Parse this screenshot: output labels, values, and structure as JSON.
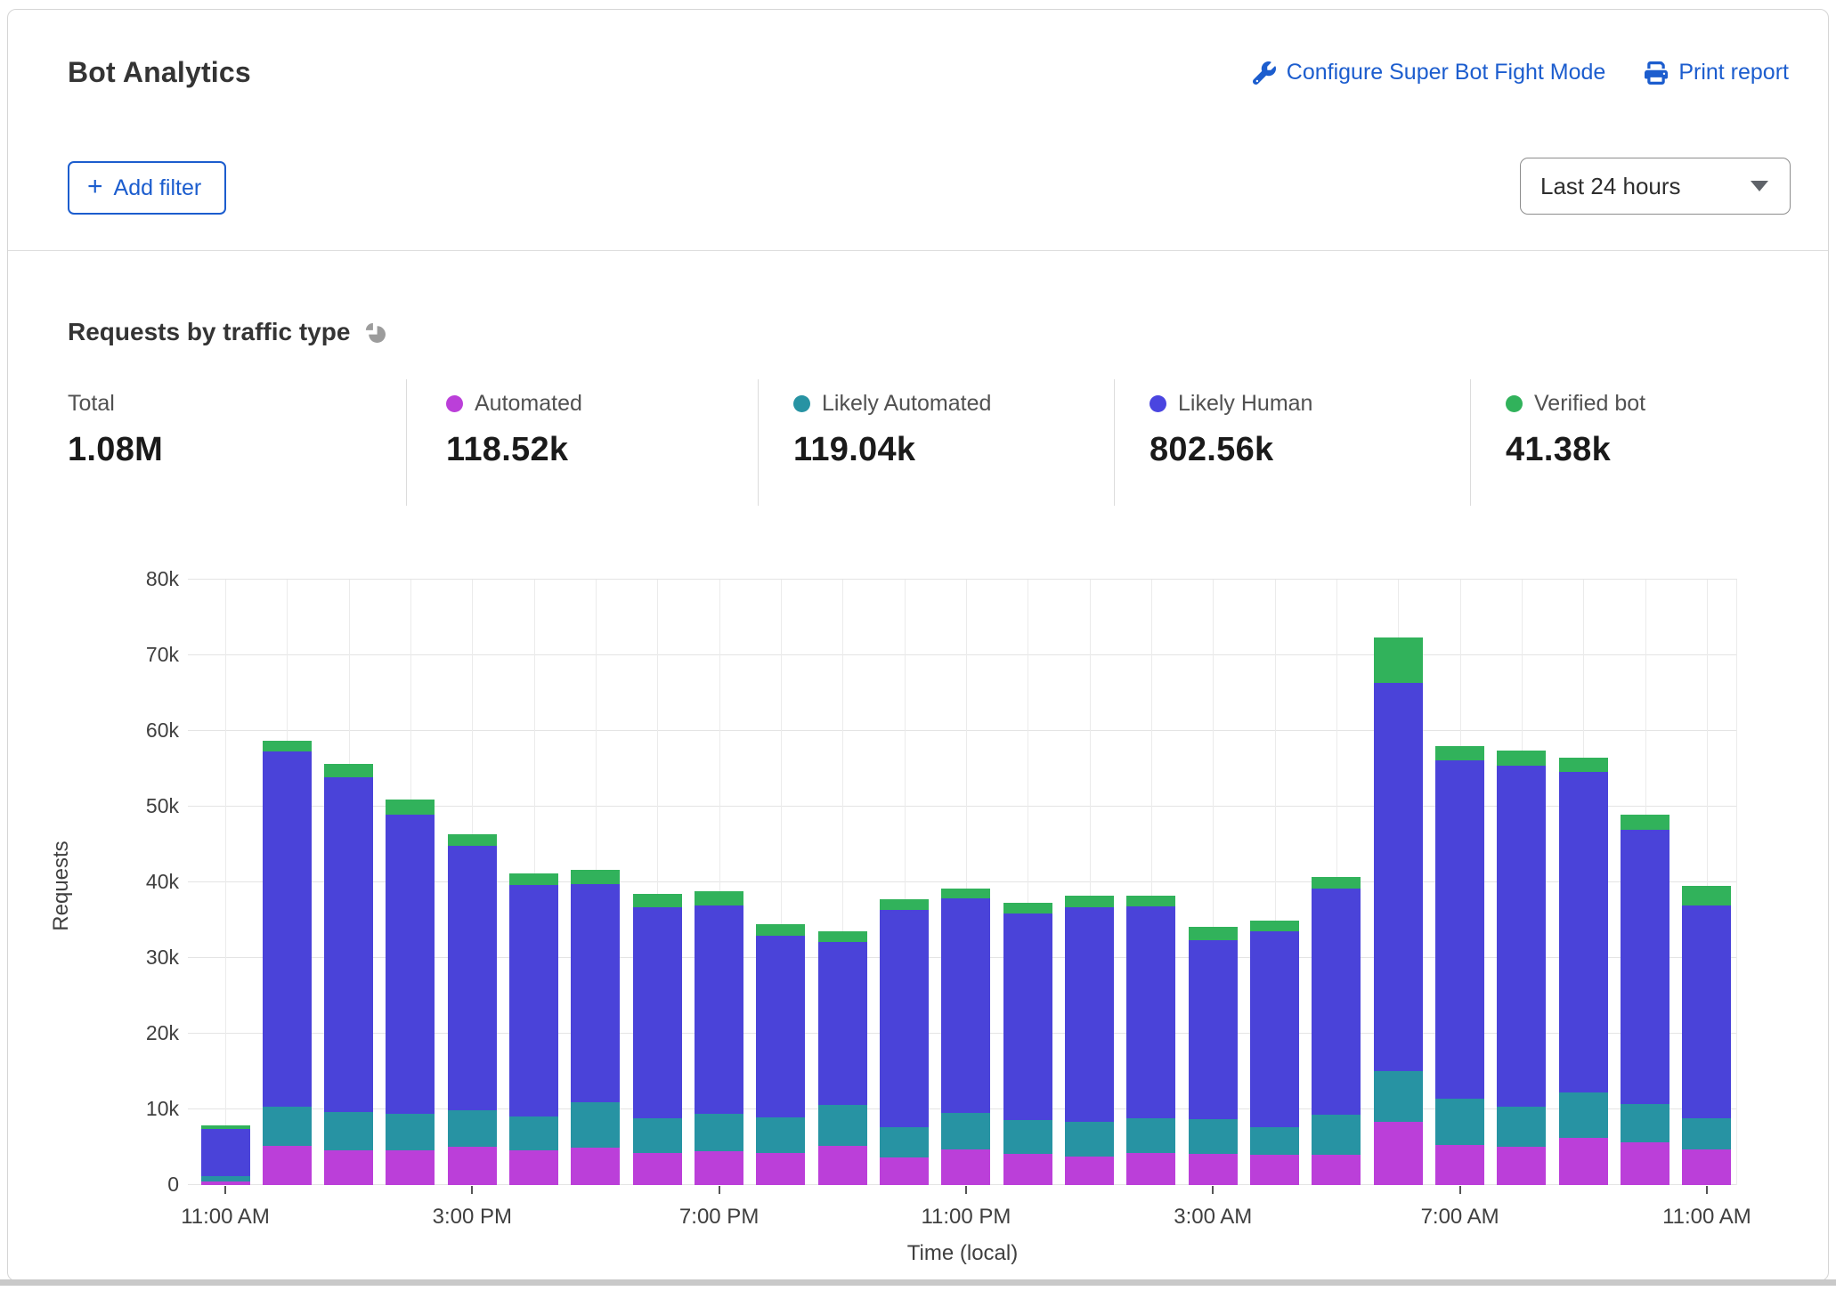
{
  "header": {
    "title": "Bot Analytics",
    "configure_link": "Configure Super Bot Fight Mode",
    "print_link": "Print report",
    "add_filter_plus": "+",
    "add_filter_label": "Add filter",
    "time_range_value": "Last 24 hours"
  },
  "section": {
    "title": "Requests by traffic type"
  },
  "stats": [
    {
      "label": "Total",
      "value": "1.08M",
      "dot": null
    },
    {
      "label": "Automated",
      "value": "118.52k",
      "dot": "#bb3fd9"
    },
    {
      "label": "Likely Automated",
      "value": "119.04k",
      "dot": "#2793a3"
    },
    {
      "label": "Likely Human",
      "value": "802.56k",
      "dot": "#4a45e0"
    },
    {
      "label": "Verified bot",
      "value": "41.38k",
      "dot": "#31b25b"
    }
  ],
  "colors": {
    "link_blue": "#1c5dce",
    "automated": "#bb3fd9",
    "likely_automated": "#2793a3",
    "likely_human": "#4a43d9",
    "verified_bot": "#31b25b"
  },
  "chart_data": {
    "type": "bar",
    "stacked": true,
    "title": "Requests by traffic type",
    "xlabel": "Time (local)",
    "ylabel": "Requests",
    "value_unit": "thousands of requests",
    "ylim_k": [
      0,
      80
    ],
    "grid": true,
    "legend_position": "top",
    "y_tick_labels": [
      "0",
      "10k",
      "20k",
      "30k",
      "40k",
      "50k",
      "60k",
      "70k",
      "80k"
    ],
    "x_hours": [
      "11:00 AM",
      "12:00 PM",
      "1:00 PM",
      "2:00 PM",
      "3:00 PM",
      "4:00 PM",
      "5:00 PM",
      "6:00 PM",
      "7:00 PM",
      "8:00 PM",
      "9:00 PM",
      "10:00 PM",
      "11:00 PM",
      "12:00 AM",
      "1:00 AM",
      "2:00 AM",
      "3:00 AM",
      "4:00 AM",
      "5:00 AM",
      "6:00 AM",
      "7:00 AM",
      "8:00 AM",
      "9:00 AM",
      "10:00 AM",
      "11:00 AM"
    ],
    "x_tick_indices": [
      0,
      4,
      8,
      12,
      16,
      20,
      24
    ],
    "x_tick_labels": [
      "11:00 AM",
      "3:00 PM",
      "7:00 PM",
      "11:00 PM",
      "3:00 AM",
      "7:00 AM",
      "11:00 AM"
    ],
    "series": [
      {
        "name": "Automated",
        "color": "#bb3fd9",
        "values_k": [
          0.5,
          5.2,
          4.6,
          4.6,
          5.1,
          4.6,
          5.0,
          4.2,
          4.5,
          4.2,
          5.2,
          3.6,
          4.7,
          4.1,
          3.8,
          4.2,
          4.1,
          4.0,
          4.0,
          8.3,
          5.3,
          5.1,
          6.2,
          5.6,
          4.7
        ]
      },
      {
        "name": "Likely Automated",
        "color": "#2793a3",
        "values_k": [
          0.7,
          5.2,
          5.0,
          4.8,
          4.8,
          4.5,
          5.9,
          4.6,
          4.9,
          4.8,
          5.4,
          4.1,
          4.8,
          4.5,
          4.6,
          4.6,
          4.6,
          3.6,
          5.3,
          6.8,
          6.1,
          5.3,
          6.0,
          5.1,
          4.1
        ]
      },
      {
        "name": "Likely Human",
        "color": "#4a43d9",
        "values_k": [
          6.2,
          46.9,
          44.3,
          39.6,
          34.9,
          30.6,
          28.9,
          27.9,
          27.6,
          23.9,
          21.5,
          28.7,
          28.4,
          27.3,
          28.3,
          28.0,
          23.7,
          25.9,
          29.9,
          51.2,
          44.7,
          45.0,
          42.4,
          36.2,
          28.1
        ]
      },
      {
        "name": "Verified bot",
        "color": "#31b25b",
        "values_k": [
          0.5,
          1.4,
          1.8,
          2.0,
          1.5,
          1.5,
          1.9,
          1.8,
          1.8,
          1.6,
          1.4,
          1.4,
          1.3,
          1.4,
          1.5,
          1.4,
          1.7,
          1.4,
          1.5,
          6.1,
          1.9,
          2.0,
          1.9,
          2.0,
          2.6
        ]
      }
    ],
    "series_totals": {
      "Total": "1.08M",
      "Automated": "118.52k",
      "Likely Automated": "119.04k",
      "Likely Human": "802.56k",
      "Verified bot": "41.38k"
    }
  }
}
